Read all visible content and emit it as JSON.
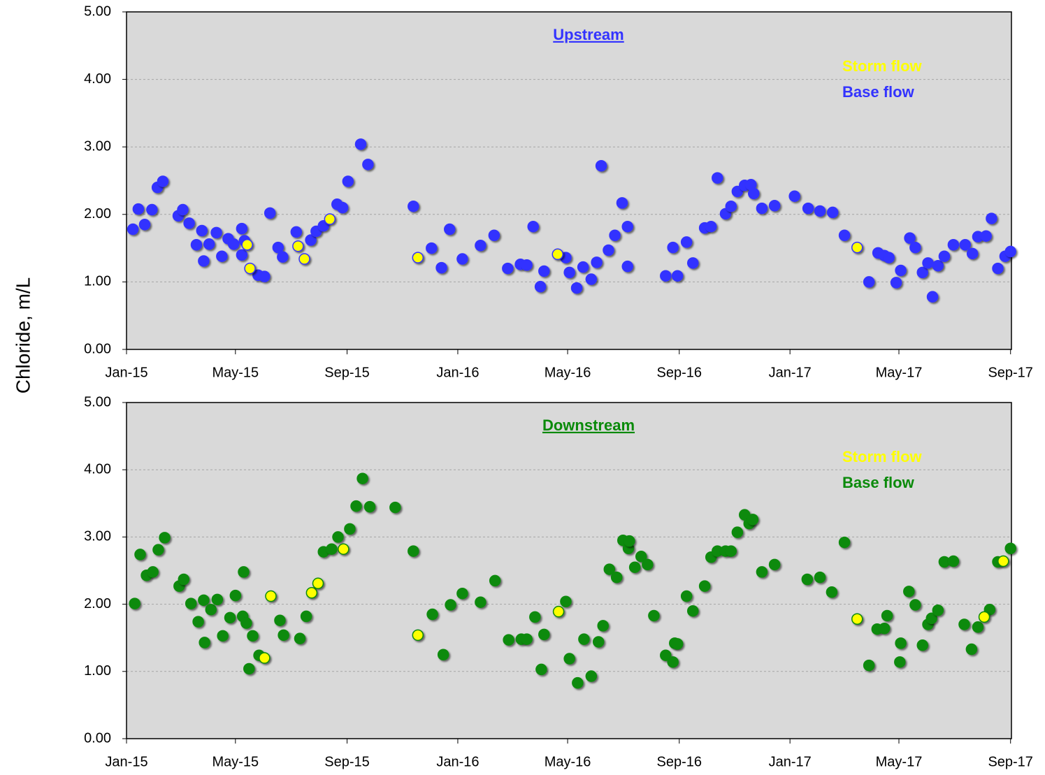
{
  "y_axis_label": "Chloride, m/L",
  "chart_data": [
    {
      "type": "scatter",
      "title": "Upstream",
      "title_color": "#3333ff",
      "xlim": [
        42005,
        42980
      ],
      "ylim": [
        0,
        5
      ],
      "xticks": [
        {
          "value": 42005,
          "label": "Jan-15"
        },
        {
          "value": 42125,
          "label": "May-15"
        },
        {
          "value": 42248,
          "label": "Sep-15"
        },
        {
          "value": 42370,
          "label": "Jan-16"
        },
        {
          "value": 42491,
          "label": "May-16"
        },
        {
          "value": 42614,
          "label": "Sep-16"
        },
        {
          "value": 42736,
          "label": "Jan-17"
        },
        {
          "value": 42856,
          "label": "May-17"
        },
        {
          "value": 42979,
          "label": "Sep-17"
        }
      ],
      "yticks": [
        {
          "value": 0,
          "label": "0.00"
        },
        {
          "value": 1,
          "label": "1.00"
        },
        {
          "value": 2,
          "label": "2.00"
        },
        {
          "value": 3,
          "label": "3.00"
        },
        {
          "value": 4,
          "label": "4.00"
        },
        {
          "value": 5,
          "label": "5.00"
        }
      ],
      "grid": true,
      "legend": "upper right",
      "series": [
        {
          "name": "Storm flow",
          "color": "#ffff00",
          "edge_color": "#3333ff",
          "x": [
            42138,
            42141,
            42194,
            42201,
            42229,
            42326,
            42480,
            42810
          ],
          "values": [
            1.55,
            1.2,
            1.53,
            1.34,
            1.93,
            1.36,
            1.41,
            1.51
          ]
        },
        {
          "name": "Base flow",
          "color": "#3333ff",
          "edge_color": "#3333ff",
          "x": [
            42012,
            42018,
            42025,
            42033,
            42039,
            42045,
            42062,
            42067,
            42074,
            42082,
            42088,
            42090,
            42096,
            42104,
            42110,
            42117,
            42123,
            42132,
            42132,
            42135,
            42150,
            42157,
            42163,
            42172,
            42177,
            42192,
            42208,
            42214,
            42222,
            42237,
            42243,
            42249,
            42263,
            42271,
            42321,
            42341,
            42352,
            42361,
            42375,
            42395,
            42410,
            42425,
            42439,
            42446,
            42453,
            42461,
            42465,
            42489,
            42493,
            42501,
            42508,
            42517,
            42523,
            42528,
            42536,
            42543,
            42551,
            42557,
            42557,
            42599,
            42607,
            42612,
            42622,
            42629,
            42642,
            42649,
            42656,
            42665,
            42671,
            42678,
            42686,
            42693,
            42696,
            42705,
            42719,
            42741,
            42756,
            42769,
            42783,
            42796,
            42823,
            42833,
            42840,
            42845,
            42853,
            42858,
            42868,
            42874,
            42882,
            42888,
            42893,
            42899,
            42906,
            42916,
            42929,
            42937,
            42943,
            42952,
            42958,
            42965,
            42973,
            42979
          ],
          "values": [
            1.78,
            2.08,
            1.85,
            2.07,
            2.4,
            2.49,
            1.98,
            2.07,
            1.87,
            1.55,
            1.76,
            1.31,
            1.56,
            1.73,
            1.38,
            1.64,
            1.56,
            1.79,
            1.4,
            1.61,
            1.1,
            1.08,
            2.02,
            1.51,
            1.37,
            1.74,
            1.62,
            1.75,
            1.83,
            2.15,
            2.1,
            2.49,
            3.04,
            2.74,
            2.12,
            1.5,
            1.21,
            1.78,
            1.34,
            1.54,
            1.69,
            1.2,
            1.26,
            1.25,
            1.82,
            0.93,
            1.16,
            1.36,
            1.14,
            0.91,
            1.22,
            1.04,
            1.29,
            2.72,
            1.47,
            1.69,
            2.17,
            1.82,
            1.23,
            1.09,
            1.51,
            1.09,
            1.59,
            1.28,
            1.8,
            1.82,
            2.54,
            2.01,
            2.12,
            2.34,
            2.43,
            2.44,
            2.31,
            2.09,
            2.13,
            2.27,
            2.09,
            2.05,
            2.03,
            1.69,
            1.0,
            1.43,
            1.39,
            1.36,
            0.99,
            1.17,
            1.65,
            1.51,
            1.14,
            1.28,
            0.78,
            1.24,
            1.38,
            1.55,
            1.55,
            1.42,
            1.67,
            1.68,
            1.94,
            1.2,
            1.38,
            1.45
          ]
        }
      ]
    },
    {
      "type": "scatter",
      "title": "Downstream",
      "title_color": "#0a8a0a",
      "xlim": [
        42005,
        42980
      ],
      "ylim": [
        0,
        5
      ],
      "xticks": [
        {
          "value": 42005,
          "label": "Jan-15"
        },
        {
          "value": 42125,
          "label": "May-15"
        },
        {
          "value": 42248,
          "label": "Sep-15"
        },
        {
          "value": 42370,
          "label": "Jan-16"
        },
        {
          "value": 42491,
          "label": "May-16"
        },
        {
          "value": 42614,
          "label": "Sep-16"
        },
        {
          "value": 42736,
          "label": "Jan-17"
        },
        {
          "value": 42856,
          "label": "May-17"
        },
        {
          "value": 42979,
          "label": "Sep-17"
        }
      ],
      "yticks": [
        {
          "value": 0,
          "label": "0.00"
        },
        {
          "value": 1,
          "label": "1.00"
        },
        {
          "value": 2,
          "label": "2.00"
        },
        {
          "value": 3,
          "label": "3.00"
        },
        {
          "value": 4,
          "label": "4.00"
        },
        {
          "value": 5,
          "label": "5.00"
        }
      ],
      "grid": true,
      "legend": "upper right",
      "series": [
        {
          "name": "Storm flow",
          "color": "#ffff00",
          "edge_color": "#0a8a0a",
          "x": [
            42164,
            42157,
            42209,
            42216,
            42244,
            42326,
            42481,
            42810,
            42950,
            42971
          ],
          "values": [
            2.12,
            1.2,
            2.17,
            2.31,
            2.82,
            1.54,
            1.89,
            1.78,
            1.81,
            2.64
          ]
        },
        {
          "name": "Base flow",
          "color": "#0a8a0a",
          "edge_color": "#0a8a0a",
          "x": [
            42014,
            42020,
            42027,
            42034,
            42040,
            42047,
            42063,
            42068,
            42076,
            42084,
            42090,
            42091,
            42098,
            42105,
            42111,
            42119,
            42125,
            42134,
            42133,
            42137,
            42140,
            42144,
            42151,
            42174,
            42178,
            42196,
            42203,
            42222,
            42231,
            42238,
            42251,
            42258,
            42265,
            42273,
            42301,
            42321,
            42342,
            42354,
            42362,
            42375,
            42395,
            42411,
            42426,
            42440,
            42446,
            42455,
            42462,
            42465,
            42489,
            42493,
            42502,
            42509,
            42517,
            42525,
            42530,
            42537,
            42545,
            42552,
            42558,
            42559,
            42565,
            42572,
            42579,
            42586,
            42599,
            42607,
            42609,
            42612,
            42622,
            42629,
            42642,
            42649,
            42656,
            42665,
            42671,
            42678,
            42686,
            42691,
            42695,
            42705,
            42719,
            42755,
            42769,
            42782,
            42796,
            42823,
            42832,
            42840,
            42843,
            42857,
            42858,
            42867,
            42874,
            42882,
            42888,
            42892,
            42899,
            42906,
            42916,
            42928,
            42936,
            42943,
            42956,
            42965,
            42979
          ],
          "values": [
            2.01,
            2.74,
            2.43,
            2.48,
            2.81,
            2.99,
            2.27,
            2.37,
            2.01,
            1.74,
            2.06,
            1.43,
            1.92,
            2.07,
            1.53,
            1.8,
            2.13,
            2.48,
            1.82,
            1.72,
            1.04,
            1.53,
            1.24,
            1.76,
            1.54,
            1.49,
            1.82,
            2.78,
            2.82,
            3.0,
            3.12,
            3.46,
            3.87,
            3.45,
            3.44,
            2.79,
            1.85,
            1.25,
            1.99,
            2.16,
            2.03,
            2.35,
            1.47,
            1.48,
            1.48,
            1.81,
            1.03,
            1.55,
            2.04,
            1.19,
            0.83,
            1.48,
            0.93,
            1.44,
            1.68,
            2.52,
            2.4,
            2.95,
            2.83,
            2.94,
            2.55,
            2.71,
            2.59,
            1.83,
            1.24,
            1.14,
            1.42,
            1.41,
            2.12,
            1.9,
            2.27,
            2.7,
            2.79,
            2.79,
            2.79,
            3.07,
            3.33,
            3.2,
            3.26,
            2.48,
            2.59,
            2.37,
            2.4,
            2.18,
            2.92,
            1.09,
            1.63,
            1.64,
            1.83,
            1.14,
            1.42,
            2.19,
            1.99,
            1.39,
            1.7,
            1.79,
            1.91,
            2.63,
            2.64,
            1.7,
            1.33,
            1.66,
            1.92,
            2.63,
            2.83
          ]
        }
      ]
    }
  ]
}
